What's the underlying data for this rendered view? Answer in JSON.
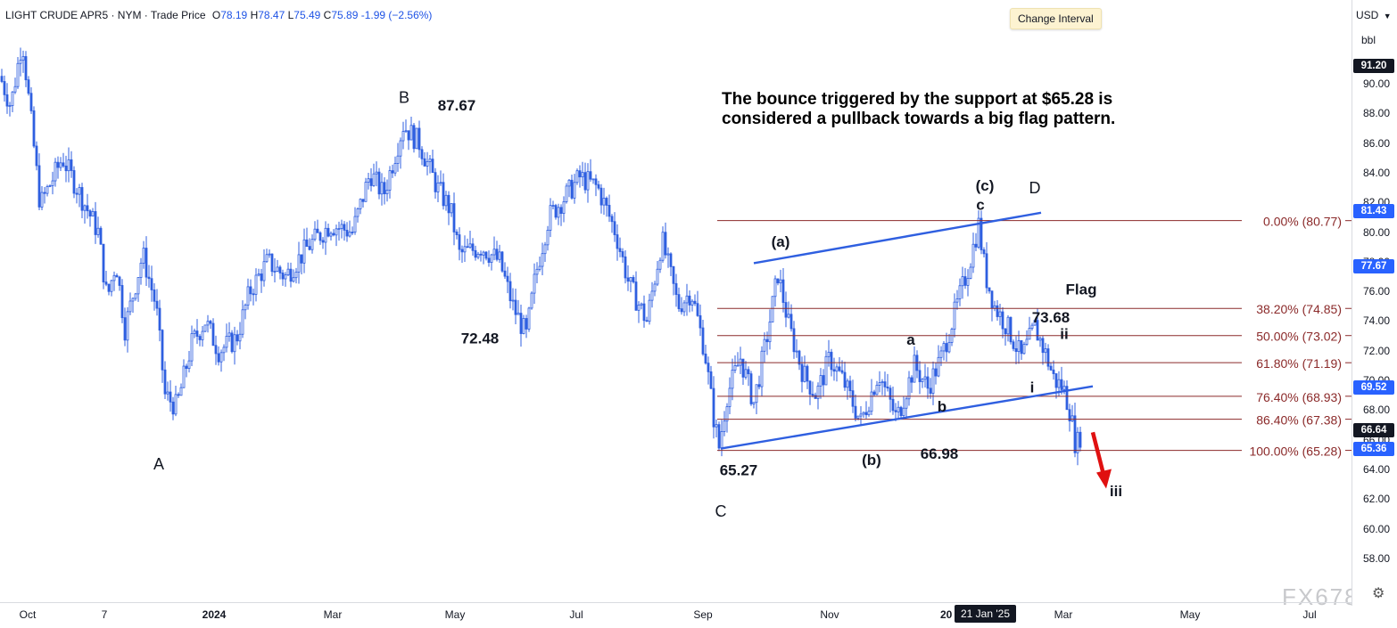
{
  "header": {
    "symbol": "LIGHT CRUDE APR5 · NYM · Trade Price",
    "open_label": "O",
    "open": "78.19",
    "high_label": "H",
    "high": "78.47",
    "low_label": "L",
    "low": "75.49",
    "close_label": "C",
    "close": "75.89",
    "change": "-1.99 (−2.56%)"
  },
  "tooltip": {
    "label": "Change Interval"
  },
  "price_axis": {
    "currency": "USD",
    "unit": "bbl",
    "ticks": [
      "90.00",
      "88.00",
      "86.00",
      "84.00",
      "82.00",
      "80.00",
      "78.00",
      "76.00",
      "74.00",
      "72.00",
      "70.00",
      "68.00",
      "66.00",
      "64.00",
      "62.00",
      "60.00",
      "58.00"
    ],
    "badges": [
      {
        "value": "91.20",
        "price": 91.2,
        "color": "#131722"
      },
      {
        "value": "81.43",
        "price": 81.43,
        "color": "#2962ff"
      },
      {
        "value": "77.67",
        "price": 77.67,
        "color": "#2962ff"
      },
      {
        "value": "69.52",
        "price": 69.52,
        "color": "#2962ff"
      },
      {
        "value": "66.64",
        "price": 66.64,
        "color": "#131722"
      },
      {
        "value": "65.36",
        "price": 65.36,
        "color": "#2962ff"
      }
    ]
  },
  "time_axis": {
    "labels": [
      {
        "text": "Oct",
        "bold": false
      },
      {
        "text": "7",
        "bold": false
      },
      {
        "text": "2024",
        "bold": true
      },
      {
        "text": "Mar",
        "bold": false
      },
      {
        "text": "May",
        "bold": false
      },
      {
        "text": "Jul",
        "bold": false
      },
      {
        "text": "Sep",
        "bold": false
      },
      {
        "text": "Nov",
        "bold": false
      },
      {
        "text": "Mar",
        "bold": false
      },
      {
        "text": "May",
        "bold": false
      },
      {
        "text": "Jul",
        "bold": false
      }
    ],
    "crosshair_date": "21 Jan '25",
    "partial_year": "20"
  },
  "annotation": {
    "line1": "The bounce triggered by the support at $65.28 is",
    "line2": "considered a pullback towards a big flag pattern."
  },
  "chart_data": {
    "type": "candlestick",
    "title": "LIGHT CRUDE APR5 · NYM · Trade Price",
    "ylim": [
      56.5,
      95.5
    ],
    "y_ticks": [
      90,
      88,
      86,
      84,
      82,
      80,
      78,
      76,
      74,
      72,
      70,
      68,
      66,
      64,
      62,
      60,
      58
    ],
    "x_ticks": [
      "Oct",
      "7",
      "2024",
      "Mar",
      "May",
      "Jul",
      "Sep",
      "Nov",
      "Mar",
      "May",
      "Jul"
    ],
    "close_path": [
      {
        "t": 0,
        "p": 90.5
      },
      {
        "t": 12,
        "p": 88.5
      },
      {
        "t": 25,
        "p": 93.0
      },
      {
        "t": 45,
        "p": 81.8
      },
      {
        "t": 70,
        "p": 85.0
      },
      {
        "t": 90,
        "p": 82.5
      },
      {
        "t": 110,
        "p": 80.0
      },
      {
        "t": 120,
        "p": 75.5
      },
      {
        "t": 130,
        "p": 78.0
      },
      {
        "t": 140,
        "p": 73.5
      },
      {
        "t": 160,
        "p": 78.5
      },
      {
        "t": 175,
        "p": 75.0
      },
      {
        "t": 185,
        "p": 69.0
      },
      {
        "t": 198,
        "p": 68.2
      },
      {
        "t": 215,
        "p": 72.5
      },
      {
        "t": 230,
        "p": 74.0
      },
      {
        "t": 245,
        "p": 72.0
      },
      {
        "t": 265,
        "p": 72.8
      },
      {
        "t": 280,
        "p": 76.0
      },
      {
        "t": 300,
        "p": 78.0
      },
      {
        "t": 320,
        "p": 77.0
      },
      {
        "t": 345,
        "p": 79.0
      },
      {
        "t": 370,
        "p": 80.5
      },
      {
        "t": 395,
        "p": 80.0
      },
      {
        "t": 415,
        "p": 84.0
      },
      {
        "t": 430,
        "p": 82.5
      },
      {
        "t": 452,
        "p": 87.2
      },
      {
        "t": 470,
        "p": 86.0
      },
      {
        "t": 490,
        "p": 83.0
      },
      {
        "t": 505,
        "p": 81.5
      },
      {
        "t": 515,
        "p": 78.5
      },
      {
        "t": 540,
        "p": 79.0
      },
      {
        "t": 560,
        "p": 78.0
      },
      {
        "t": 575,
        "p": 75.0
      },
      {
        "t": 590,
        "p": 73.0
      },
      {
        "t": 600,
        "p": 77.0
      },
      {
        "t": 615,
        "p": 81.0
      },
      {
        "t": 635,
        "p": 82.5
      },
      {
        "t": 650,
        "p": 83.7
      },
      {
        "t": 670,
        "p": 83.0
      },
      {
        "t": 690,
        "p": 80.0
      },
      {
        "t": 705,
        "p": 76.5
      },
      {
        "t": 725,
        "p": 74.0
      },
      {
        "t": 742,
        "p": 79.5
      },
      {
        "t": 760,
        "p": 75.0
      },
      {
        "t": 775,
        "p": 76.0
      },
      {
        "t": 790,
        "p": 72.0
      },
      {
        "t": 800,
        "p": 67.5
      },
      {
        "t": 806,
        "p": 65.5
      },
      {
        "t": 815,
        "p": 69.0
      },
      {
        "t": 830,
        "p": 71.5
      },
      {
        "t": 845,
        "p": 68.5
      },
      {
        "t": 860,
        "p": 73.0
      },
      {
        "t": 872,
        "p": 77.2
      },
      {
        "t": 885,
        "p": 73.5
      },
      {
        "t": 900,
        "p": 70.5
      },
      {
        "t": 915,
        "p": 69.0
      },
      {
        "t": 930,
        "p": 71.5
      },
      {
        "t": 945,
        "p": 70.0
      },
      {
        "t": 965,
        "p": 67.2
      },
      {
        "t": 985,
        "p": 70.5
      },
      {
        "t": 1005,
        "p": 67.4
      },
      {
        "t": 1025,
        "p": 71.0
      },
      {
        "t": 1040,
        "p": 69.5
      },
      {
        "t": 1055,
        "p": 71.5
      },
      {
        "t": 1070,
        "p": 74.5
      },
      {
        "t": 1085,
        "p": 77.5
      },
      {
        "t": 1097,
        "p": 80.5
      },
      {
        "t": 1105,
        "p": 77.0
      },
      {
        "t": 1115,
        "p": 75.0
      },
      {
        "t": 1130,
        "p": 73.5
      },
      {
        "t": 1145,
        "p": 71.5
      },
      {
        "t": 1160,
        "p": 73.6
      },
      {
        "t": 1172,
        "p": 71.8
      },
      {
        "t": 1182,
        "p": 70.0
      },
      {
        "t": 1192,
        "p": 69.5
      },
      {
        "t": 1200,
        "p": 67.8
      },
      {
        "t": 1206,
        "p": 65.5
      },
      {
        "t": 1213,
        "p": 66.6
      }
    ],
    "fibonacci": [
      {
        "label": "0.00% (80.77)",
        "price": 80.77
      },
      {
        "label": "38.20% (74.85)",
        "price": 74.85
      },
      {
        "label": "50.00% (73.02)",
        "price": 73.02
      },
      {
        "label": "61.80% (71.19)",
        "price": 71.19
      },
      {
        "label": "76.40% (68.93)",
        "price": 68.93
      },
      {
        "label": "86.40% (67.38)",
        "price": 67.38
      },
      {
        "label": "100.00% (65.28)",
        "price": 65.28
      }
    ],
    "channel": {
      "upper": [
        {
          "t": 845,
          "p": 77.9
        },
        {
          "t": 1167,
          "p": 81.3
        }
      ],
      "lower": [
        {
          "t": 808,
          "p": 65.4
        },
        {
          "t": 1225,
          "p": 69.6
        }
      ]
    },
    "projection_arrow": {
      "from": {
        "t": 1225,
        "p": 66.5
      },
      "to": {
        "t": 1240,
        "p": 62.7
      }
    },
    "wave_labels": [
      {
        "text": "A",
        "t": 178,
        "p": 64.0,
        "bold": false
      },
      {
        "text": "B",
        "t": 453,
        "p": 88.7,
        "bold": false
      },
      {
        "text": "87.67",
        "t": 512,
        "p": 88.2,
        "bold": true
      },
      {
        "text": "72.48",
        "t": 538,
        "p": 72.5,
        "bold": true
      },
      {
        "text": "C",
        "t": 808,
        "p": 60.8,
        "bold": false
      },
      {
        "text": "65.27",
        "t": 828,
        "p": 63.6,
        "bold": true
      },
      {
        "text": "(a)",
        "t": 875,
        "p": 79.0,
        "bold": true
      },
      {
        "text": "(b)",
        "t": 977,
        "p": 64.3,
        "bold": true
      },
      {
        "text": "66.98",
        "t": 1053,
        "p": 64.7,
        "bold": true
      },
      {
        "text": "a",
        "t": 1021,
        "p": 72.4,
        "bold": true
      },
      {
        "text": "b",
        "t": 1056,
        "p": 67.9,
        "bold": true
      },
      {
        "text": "(c)",
        "t": 1104,
        "p": 82.8,
        "bold": true
      },
      {
        "text": "c",
        "t": 1099,
        "p": 81.5,
        "bold": true
      },
      {
        "text": "D",
        "t": 1160,
        "p": 82.6,
        "bold": false
      },
      {
        "text": "Flag",
        "t": 1212,
        "p": 75.8,
        "bold": true
      },
      {
        "text": "73.68",
        "t": 1178,
        "p": 73.9,
        "bold": true
      },
      {
        "text": "ii",
        "t": 1193,
        "p": 72.8,
        "bold": true
      },
      {
        "text": "i",
        "t": 1157,
        "p": 69.2,
        "bold": true
      },
      {
        "text": "iii",
        "t": 1251,
        "p": 62.2,
        "bold": true
      }
    ]
  }
}
